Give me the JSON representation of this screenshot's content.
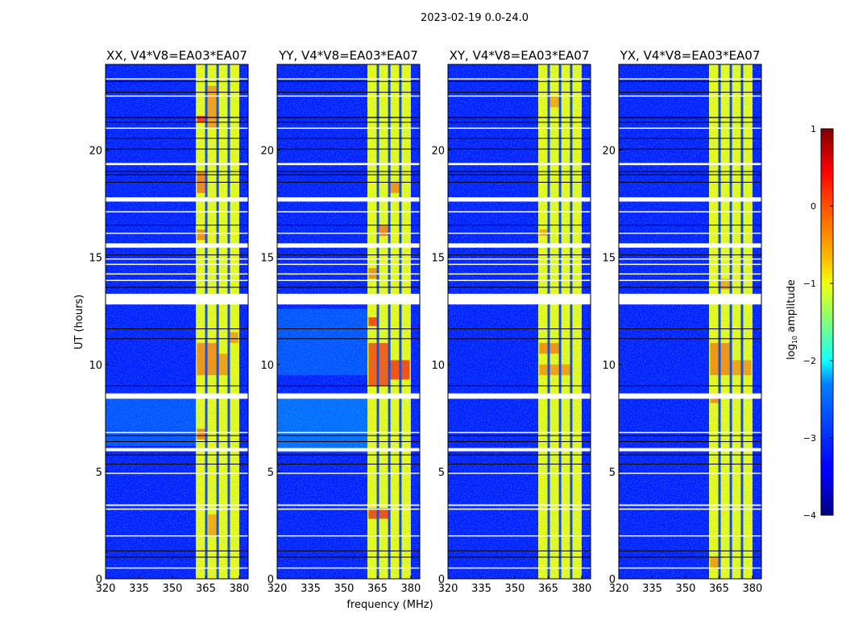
{
  "chart_data": {
    "type": "heatmap",
    "suptitle": "2023-02-19 0.0-24.0",
    "xlabel": "frequency (MHz)",
    "ylabel": "UT (hours)",
    "xlim": [
      320,
      384
    ],
    "ylim": [
      0,
      24
    ],
    "xticks": [
      320,
      335,
      350,
      365,
      380
    ],
    "yticks": [
      0,
      5,
      10,
      15,
      20
    ],
    "colorbar": {
      "label_main": "log",
      "label_sub": "10",
      "label_rest": " amplitude",
      "range": [
        -4,
        1
      ],
      "ticks": [
        -4,
        -3,
        -2,
        -1,
        0,
        1
      ],
      "tick_labels": [
        "−4",
        "−3",
        "−2",
        "−1",
        "0",
        "1"
      ],
      "colormap": "jet"
    },
    "background_level": -3.2,
    "band": {
      "f0": 360.5,
      "f1": 380,
      "level": -1.0,
      "dividers_mhz": [
        365.2,
        370.3,
        375.3
      ]
    },
    "flagged_rows_white": [
      [
        23.3,
        23.35
      ],
      [
        22.5,
        22.55
      ],
      [
        21.0,
        21.05
      ],
      [
        19.3,
        19.4
      ],
      [
        17.6,
        17.8
      ],
      [
        17.1,
        17.15
      ],
      [
        16.1,
        16.15
      ],
      [
        15.45,
        15.65
      ],
      [
        14.9,
        14.95
      ],
      [
        14.65,
        14.7
      ],
      [
        14.2,
        14.25
      ],
      [
        13.9,
        13.95
      ],
      [
        12.8,
        13.3
      ],
      [
        8.4,
        8.65
      ],
      [
        6.8,
        6.85
      ],
      [
        5.95,
        6.1
      ],
      [
        4.9,
        4.95
      ],
      [
        3.4,
        3.47
      ],
      [
        3.22,
        3.28
      ],
      [
        1.98,
        2.03
      ],
      [
        0.48,
        0.53
      ]
    ],
    "flagged_rows_black": [
      [
        23.2,
        23.22
      ],
      [
        22.7,
        22.72
      ],
      [
        21.5,
        21.55
      ],
      [
        21.3,
        21.32
      ],
      [
        20.55,
        20.57
      ],
      [
        20.05,
        20.07
      ],
      [
        19.0,
        19.02
      ],
      [
        18.85,
        18.87
      ],
      [
        18.5,
        18.52
      ],
      [
        16.5,
        16.52
      ],
      [
        15.1,
        15.13
      ],
      [
        13.6,
        13.62
      ],
      [
        11.65,
        11.68
      ],
      [
        11.2,
        11.22
      ],
      [
        9.0,
        9.02
      ],
      [
        6.67,
        6.7
      ],
      [
        6.4,
        6.42
      ],
      [
        5.77,
        5.8
      ],
      [
        5.35,
        5.37
      ],
      [
        1.3,
        1.32
      ],
      [
        1.0,
        1.03
      ]
    ],
    "panels": [
      {
        "title": "XX, V4*V8=EA03*EA07",
        "haze": [
          [
            6.2,
            8.4,
            -2.6
          ]
        ],
        "hot": [
          [
            361,
            365,
            18,
            19,
            -0.2
          ],
          [
            365.5,
            370,
            21,
            23,
            -0.4
          ],
          [
            361,
            365,
            21.3,
            21.6,
            0.3
          ],
          [
            361,
            370,
            9.5,
            11,
            -0.3
          ],
          [
            370.5,
            375,
            9.5,
            10.5,
            -0.4
          ],
          [
            361,
            365,
            6.5,
            7,
            -0.2
          ],
          [
            366,
            370,
            2,
            3,
            -0.5
          ],
          [
            375.5,
            379.5,
            11,
            11.5,
            -0.4
          ],
          [
            361,
            365,
            15.8,
            16.3,
            -0.3
          ]
        ]
      },
      {
        "title": "YY, V4*V8=EA03*EA07",
        "haze": [
          [
            5.9,
            8.4,
            -2.3
          ],
          [
            9.5,
            12.6,
            -2.6
          ]
        ],
        "hot": [
          [
            361,
            370,
            9,
            11,
            0.1
          ],
          [
            370.5,
            379.5,
            9.3,
            10.2,
            0.2
          ],
          [
            361,
            365,
            11.8,
            12.2,
            0.2
          ],
          [
            361,
            370,
            2.8,
            3.3,
            0.2
          ],
          [
            365.5,
            370,
            16,
            16.5,
            -0.2
          ],
          [
            370.5,
            375,
            18,
            18.5,
            -0.3
          ],
          [
            361,
            365,
            14,
            14.5,
            -0.3
          ]
        ]
      },
      {
        "title": "XY, V4*V8=EA03*EA07",
        "haze": [],
        "hot": [
          [
            361,
            370,
            10.5,
            11,
            -0.3
          ],
          [
            361,
            375,
            9.5,
            10,
            -0.4
          ],
          [
            365.5,
            370,
            22,
            22.5,
            -0.5
          ],
          [
            361,
            365,
            16,
            16.3,
            -0.5
          ]
        ]
      },
      {
        "title": "YX, V4*V8=EA03*EA07",
        "haze": [],
        "hot": [
          [
            361,
            370,
            9.5,
            11,
            -0.3
          ],
          [
            370.5,
            379.5,
            9.5,
            10.2,
            -0.4
          ],
          [
            361,
            365,
            8.2,
            8.5,
            -0.3
          ],
          [
            361,
            365,
            0.5,
            1,
            -0.4
          ],
          [
            365.5,
            370,
            13.5,
            14,
            -0.5
          ]
        ]
      }
    ]
  }
}
